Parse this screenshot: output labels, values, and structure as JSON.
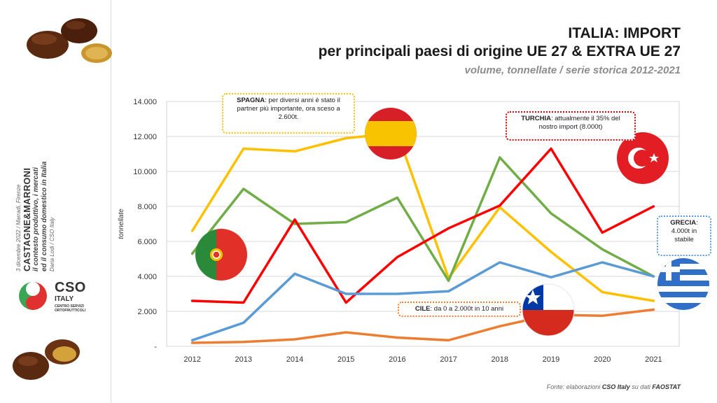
{
  "sidebar": {
    "date_line": "3 dicembre 2022 / Marradi, Firenze",
    "event_title": "CASTAGNE&MARRONI",
    "subtitle_line1": "il contesto produttivo, i mercati",
    "subtitle_line2": "ed il consumo domestico in Italia",
    "author": "Daria Lodi / CSO Italy",
    "logo_brand": "CSO",
    "logo_sub": "ITALY",
    "logo_tiny": "CENTRO SERVIZI ORTOFRUTTICOLI"
  },
  "header": {
    "title_line1": "ITALIA: IMPORT",
    "title_line2": "per principali paesi di origine UE 27 & EXTRA UE 27",
    "subtitle": "volume, tonnellate / serie storica 2012-2021"
  },
  "footer": {
    "prefix": "Fonte: elaborazioni ",
    "brand": "CSO Italy",
    "middle": " su dati ",
    "source": "FAOSTAT"
  },
  "callouts": {
    "spagna": {
      "label": "SPAGNA",
      "text": ": per diversi anni è stato il partner più importante, ora sceso a 2.600t."
    },
    "turchia": {
      "label": "TURCHIA",
      "text": ": attualmente il 35% del nostro import (8.000t)"
    },
    "grecia": {
      "label": "GRECIA",
      "text": ": 4.000t in stabile"
    },
    "cile": {
      "label": "CILE",
      "text": ": da 0 a 2.000t in 10 anni"
    }
  },
  "colors": {
    "spagna": "#FFC000",
    "turchia": "#FF0000",
    "grecia": "#5B9BD5",
    "portogallo": "#70AD47",
    "cile": "#ED7D31"
  },
  "flags": [
    "portugal-flag",
    "spain-flag",
    "turkey-flag",
    "chile-flag",
    "greece-flag"
  ],
  "chart_data": {
    "type": "line",
    "title": "ITALIA: IMPORT per principali paesi di origine UE 27 & EXTRA UE 27",
    "xlabel": "",
    "ylabel": "tonnellate",
    "ylim": [
      0,
      14000
    ],
    "yticks": [
      "-",
      "2.000",
      "4.000",
      "6.000",
      "8.000",
      "10.000",
      "12.000",
      "14.000"
    ],
    "grid": "horizontal",
    "categories": [
      "2012",
      "2013",
      "2014",
      "2015",
      "2016",
      "2017",
      "2018",
      "2019",
      "2020",
      "2021"
    ],
    "series": [
      {
        "key": "spagna",
        "values": [
          6600,
          11300,
          11150,
          11900,
          12200,
          3900,
          7950,
          5400,
          3100,
          2600
        ]
      },
      {
        "key": "portogallo",
        "values": [
          5300,
          9000,
          7000,
          7100,
          8500,
          3750,
          10800,
          7600,
          5550,
          4000
        ]
      },
      {
        "key": "turchia",
        "values": [
          2600,
          2500,
          7250,
          2500,
          5100,
          6750,
          8050,
          11300,
          6500,
          8000
        ]
      },
      {
        "key": "grecia",
        "values": [
          350,
          1350,
          4150,
          3000,
          3000,
          3150,
          4800,
          3950,
          4800,
          4000
        ]
      },
      {
        "key": "cile",
        "values": [
          200,
          250,
          400,
          800,
          500,
          350,
          1150,
          1800,
          1750,
          2100
        ]
      }
    ]
  }
}
